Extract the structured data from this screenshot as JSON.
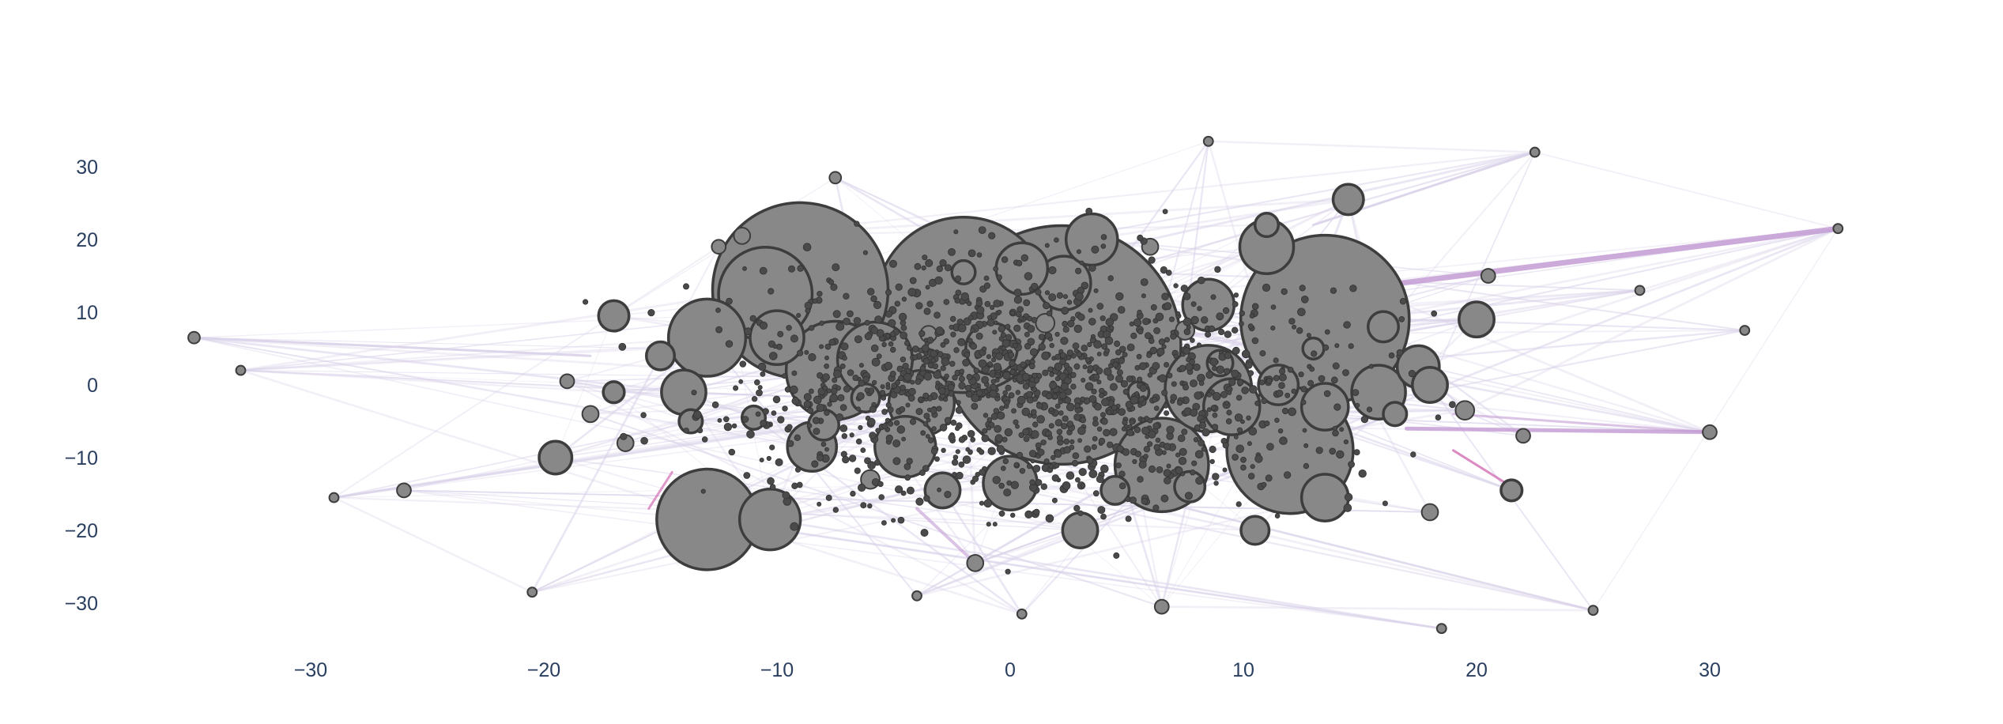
{
  "chart_data": {
    "type": "scatter",
    "title": "",
    "xlabel": "",
    "ylabel": "",
    "xlim": [
      -35.5,
      37.5
    ],
    "ylim": [
      -36.5,
      38
    ],
    "grid": false,
    "legend": "none",
    "x_ticks": [
      -30,
      -20,
      -10,
      0,
      10,
      20,
      30
    ],
    "y_ticks": [
      -30,
      -20,
      -10,
      0,
      10,
      20,
      30
    ],
    "x_tick_labels": [
      "−30",
      "−20",
      "−10",
      "0",
      "10",
      "20",
      "30"
    ],
    "y_tick_labels": [
      "−30",
      "−20",
      "−10",
      "0",
      "10",
      "20",
      "30"
    ],
    "colors": {
      "tick_text": "#2a3f5f",
      "node_fill": "#888888",
      "node_outline": "#3d3d3d",
      "edge_light": "#d9d2e9",
      "edge_strong": "#c39bd3",
      "edge_accent": "#d36fb4"
    },
    "series": [
      {
        "points": [
          {
            "x": 2.2,
            "y": 5.5,
            "size": 10.2
          },
          {
            "x": -2.0,
            "y": 11.0,
            "size": 7.5
          },
          {
            "x": 13.5,
            "y": 9.0,
            "size": 7.2
          },
          {
            "x": -9.0,
            "y": 13.0,
            "size": 7.5
          },
          {
            "x": 12.0,
            "y": -9.0,
            "size": 5.4
          },
          {
            "x": -13.0,
            "y": -18.5,
            "size": 4.3
          },
          {
            "x": 8.5,
            "y": -0.5,
            "size": 3.7
          },
          {
            "x": 6.5,
            "y": -11.0,
            "size": 4.0
          },
          {
            "x": -7.5,
            "y": 2.0,
            "size": 4.2
          },
          {
            "x": 3.5,
            "y": 20.0,
            "size": 2.2
          },
          {
            "x": -10.0,
            "y": 6.5,
            "size": 2.3
          },
          {
            "x": -13.0,
            "y": 6.5,
            "size": 3.3
          },
          {
            "x": -10.5,
            "y": 12.5,
            "size": 4.0
          },
          {
            "x": -4.5,
            "y": -8.5,
            "size": 2.6
          },
          {
            "x": -5.8,
            "y": 3.5,
            "size": 3.2
          },
          {
            "x": -3.8,
            "y": -2.5,
            "size": 2.8
          },
          {
            "x": -0.8,
            "y": 5.0,
            "size": 2.2
          },
          {
            "x": 2.3,
            "y": 14.0,
            "size": 2.3
          },
          {
            "x": 9.5,
            "y": -3.0,
            "size": 2.4
          },
          {
            "x": 11.0,
            "y": 19.0,
            "size": 2.3
          },
          {
            "x": 15.8,
            "y": -1.0,
            "size": 2.3
          },
          {
            "x": 8.5,
            "y": 11.0,
            "size": 2.2
          },
          {
            "x": -8.5,
            "y": -8.5,
            "size": 2.1
          },
          {
            "x": 0,
            "y": -13.5,
            "size": 2.3
          },
          {
            "x": 13.5,
            "y": -3.0,
            "size": 2.0
          },
          {
            "x": -14.0,
            "y": -1.0,
            "size": 1.9
          },
          {
            "x": 17.5,
            "y": 2.5,
            "size": 1.8
          },
          {
            "x": -10.3,
            "y": -18.5,
            "size": 2.6
          },
          {
            "x": 13.5,
            "y": -15.5,
            "size": 2.0
          },
          {
            "x": 0.5,
            "y": 16.0,
            "size": 2.2
          },
          {
            "x": 14.5,
            "y": 25.5,
            "size": 1.3
          },
          {
            "x": 20.0,
            "y": 9.0,
            "size": 1.5
          },
          {
            "x": -17.0,
            "y": 9.5,
            "size": 1.3
          },
          {
            "x": -19.5,
            "y": -10.0,
            "size": 1.4
          },
          {
            "x": -2.9,
            "y": -14.5,
            "size": 1.5
          },
          {
            "x": 7.7,
            "y": -14.0,
            "size": 1.3
          },
          {
            "x": 10.5,
            "y": -20.0,
            "size": 1.2
          },
          {
            "x": 16.0,
            "y": 8.0,
            "size": 1.3
          },
          {
            "x": 3.0,
            "y": -20.0,
            "size": 1.5
          },
          {
            "x": 21.5,
            "y": -14.5,
            "size": 0.9
          },
          {
            "x": 30.0,
            "y": -6.5,
            "size": 0.6
          },
          {
            "x": -15.0,
            "y": 4.0,
            "size": 1.2
          },
          {
            "x": -13.7,
            "y": -5.0,
            "size": 1.0
          },
          {
            "x": 11.5,
            "y": 0,
            "size": 1.7
          },
          {
            "x": 4.5,
            "y": -14.5,
            "size": 1.2
          },
          {
            "x": 18.0,
            "y": 0,
            "size": 1.5
          },
          {
            "x": 16.5,
            "y": -4.0,
            "size": 1.0
          },
          {
            "x": 20.5,
            "y": 15.0,
            "size": 0.6
          },
          {
            "x": 18.0,
            "y": -17.5,
            "size": 0.7
          },
          {
            "x": -8.0,
            "y": -5.5,
            "size": 1.3
          },
          {
            "x": -2.0,
            "y": 15.5,
            "size": 1.0
          },
          {
            "x": 19.5,
            "y": -3.5,
            "size": 0.8
          },
          {
            "x": -17.0,
            "y": -1.0,
            "size": 0.9
          },
          {
            "x": -6.2,
            "y": -1.8,
            "size": 1.2
          },
          {
            "x": 11.0,
            "y": 22.0,
            "size": 1.0
          },
          {
            "x": 13.0,
            "y": 5.0,
            "size": 0.9
          },
          {
            "x": -19.0,
            "y": 0.5,
            "size": 0.6
          },
          {
            "x": 9.0,
            "y": 3.0,
            "size": 1.1
          },
          {
            "x": 5.5,
            "y": -1.0,
            "size": 0.9
          },
          {
            "x": -6.0,
            "y": -13.0,
            "size": 0.8
          },
          {
            "x": -11.5,
            "y": 20.5,
            "size": 0.7
          },
          {
            "x": 1.5,
            "y": 8.5,
            "size": 0.8
          },
          {
            "x": -3.5,
            "y": 7.0,
            "size": 0.7
          },
          {
            "x": 7.5,
            "y": 7.5,
            "size": 0.8
          },
          {
            "x": -12.5,
            "y": 19.0,
            "size": 0.6
          },
          {
            "x": -26.0,
            "y": -14.5,
            "size": 0.6
          },
          {
            "x": -16.5,
            "y": -8.0,
            "size": 0.7
          },
          {
            "x": -35.0,
            "y": 6.5,
            "size": 0.5
          },
          {
            "x": -33.0,
            "y": 2.0,
            "size": 0.4
          },
          {
            "x": 35.5,
            "y": 21.5,
            "size": 0.4
          },
          {
            "x": 31.5,
            "y": 7.5,
            "size": 0.4
          },
          {
            "x": 22.5,
            "y": 32.0,
            "size": 0.4
          },
          {
            "x": 8.5,
            "y": 33.5,
            "size": 0.4
          },
          {
            "x": 6.5,
            "y": -30.5,
            "size": 0.6
          },
          {
            "x": -4.0,
            "y": -29.0,
            "size": 0.4
          },
          {
            "x": 18.5,
            "y": -33.5,
            "size": 0.4
          },
          {
            "x": -7.5,
            "y": 28.5,
            "size": 0.5
          },
          {
            "x": -29.0,
            "y": -15.5,
            "size": 0.4
          },
          {
            "x": -20.5,
            "y": -28.5,
            "size": 0.4
          },
          {
            "x": 25.0,
            "y": -31.0,
            "size": 0.4
          },
          {
            "x": -1.5,
            "y": -24.5,
            "size": 0.7
          },
          {
            "x": 6.0,
            "y": 19.0,
            "size": 0.7
          },
          {
            "x": 22.0,
            "y": -7.0,
            "size": 0.6
          },
          {
            "x": -11.0,
            "y": -4.5,
            "size": 1.0
          },
          {
            "x": -18.0,
            "y": -4.0,
            "size": 0.7
          },
          {
            "x": 0.5,
            "y": -31.5,
            "size": 0.4
          },
          {
            "x": 27.0,
            "y": 13.0,
            "size": 0.4
          }
        ]
      }
    ]
  }
}
